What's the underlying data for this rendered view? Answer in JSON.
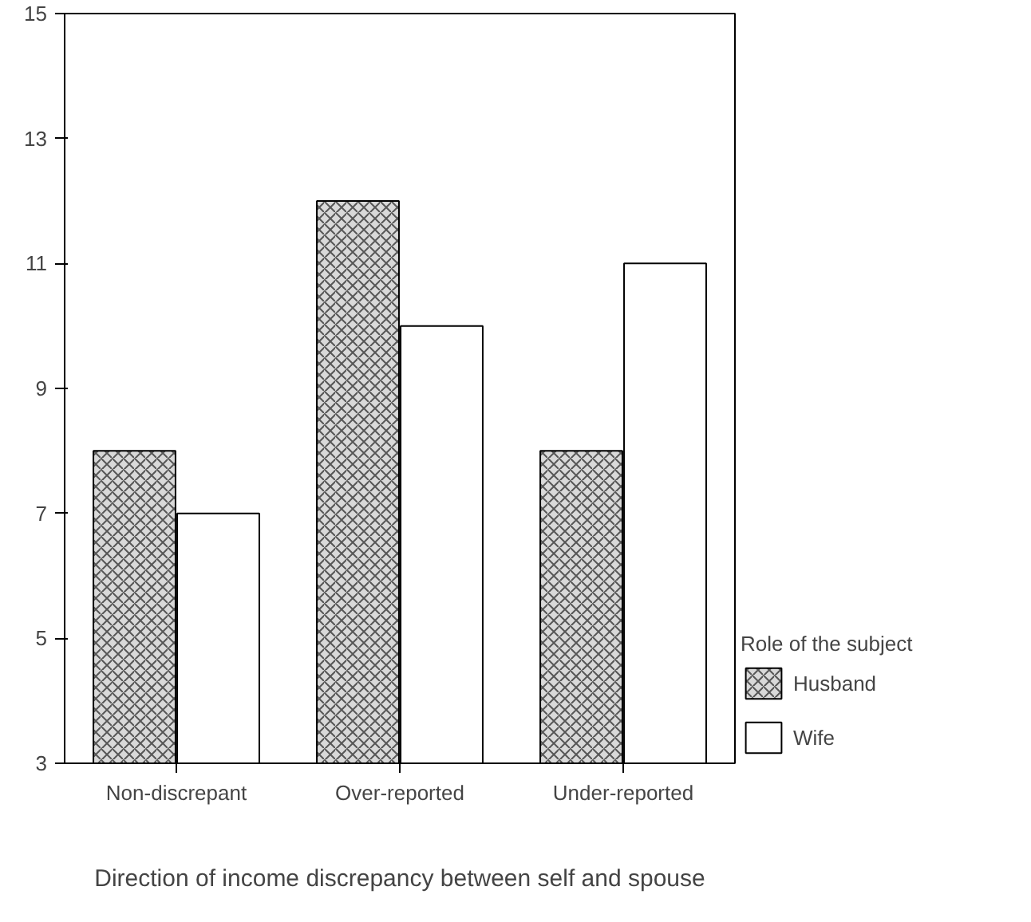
{
  "chart_data": {
    "type": "bar",
    "xlabel": "Direction of income discrepancy between self and spouse",
    "legend_title": "Role of the subject",
    "categories": [
      "Non-discrepant",
      "Over-reported",
      "Under-reported"
    ],
    "series": [
      {
        "name": "Husband",
        "color": "#d9d9d9",
        "values": [
          8,
          12,
          8
        ]
      },
      {
        "name": "Wife",
        "color": "#ffffff",
        "values": [
          7,
          10,
          11
        ]
      }
    ],
    "ylim": [
      3,
      15
    ],
    "yticks": [
      3,
      5,
      7,
      9,
      11,
      13,
      15
    ],
    "grid": false,
    "legend": "right"
  }
}
